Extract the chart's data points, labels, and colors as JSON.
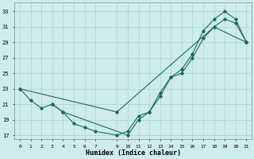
{
  "xlabel": "Humidex (Indice chaleur)",
  "background_color": "#ceecea",
  "line_color": "#1a6b5e",
  "grid_color": "#aed8d4",
  "xticks": [
    0,
    1,
    2,
    3,
    4,
    5,
    6,
    7,
    9,
    10,
    11,
    12,
    13,
    14,
    15,
    16,
    17,
    18,
    19,
    20,
    21
  ],
  "yticks": [
    17,
    19,
    21,
    23,
    25,
    27,
    29,
    31,
    33
  ],
  "xlim": [
    -0.5,
    21.5
  ],
  "ylim": [
    16.5,
    34.2
  ],
  "line1_x": [
    0,
    1,
    2,
    3,
    4,
    5,
    6,
    7,
    9,
    10,
    11,
    12,
    13,
    14,
    15,
    16,
    17,
    18,
    19,
    20,
    21
  ],
  "line1_y": [
    23,
    21.5,
    20.5,
    21,
    20,
    18.5,
    18,
    17.5,
    17,
    17.5,
    19.5,
    20,
    22.5,
    24.5,
    25,
    27,
    29.5,
    31,
    32,
    31.5,
    29
  ],
  "line2_x": [
    3,
    4,
    10,
    11,
    12,
    13,
    14,
    15,
    16,
    17,
    18,
    19,
    20,
    21
  ],
  "line2_y": [
    21,
    20,
    17,
    19,
    20,
    22,
    24.5,
    25.5,
    27.5,
    30.5,
    32,
    33,
    32,
    29
  ],
  "line3_x": [
    0,
    9,
    18,
    21
  ],
  "line3_y": [
    23,
    20,
    31,
    29
  ]
}
